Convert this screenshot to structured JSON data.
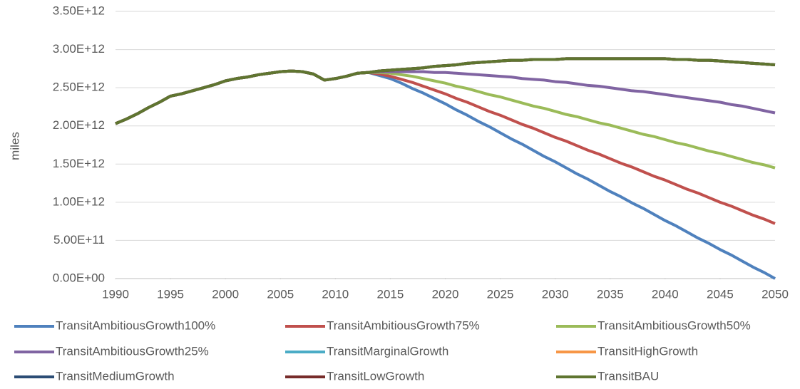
{
  "chart_data": {
    "type": "line",
    "y_label": "miles",
    "x": [
      1990,
      1991,
      1992,
      1993,
      1994,
      1995,
      1996,
      1997,
      1998,
      1999,
      2000,
      2001,
      2002,
      2003,
      2004,
      2005,
      2006,
      2007,
      2008,
      2009,
      2010,
      2011,
      2012,
      2013,
      2014,
      2015,
      2016,
      2017,
      2018,
      2019,
      2020,
      2021,
      2022,
      2023,
      2024,
      2025,
      2026,
      2027,
      2028,
      2029,
      2030,
      2031,
      2032,
      2033,
      2034,
      2035,
      2036,
      2037,
      2038,
      2039,
      2040,
      2041,
      2042,
      2043,
      2044,
      2045,
      2046,
      2047,
      2048,
      2049,
      2050
    ],
    "xlim": [
      1990,
      2050
    ],
    "xticks": [
      1990,
      1995,
      2000,
      2005,
      2010,
      2015,
      2020,
      2025,
      2030,
      2035,
      2040,
      2045,
      2050
    ],
    "ylim": [
      0,
      3500000000000.0
    ],
    "yticks": [
      {
        "value": 0,
        "label": "0.00E+00"
      },
      {
        "value": 500000000000.0,
        "label": "5.00E+11"
      },
      {
        "value": 1000000000000.0,
        "label": "1.00E+12"
      },
      {
        "value": 1500000000000.0,
        "label": "1.50E+12"
      },
      {
        "value": 2000000000000.0,
        "label": "2.00E+12"
      },
      {
        "value": 2500000000000.0,
        "label": "2.50E+12"
      },
      {
        "value": 3000000000000.0,
        "label": "3.00E+12"
      },
      {
        "value": 3500000000000.0,
        "label": "3.50E+12"
      }
    ],
    "grid": true,
    "legend": "bottom",
    "series": [
      {
        "name": "TransitAmbitiousGrowth100%",
        "color": "#4F81BD",
        "values": [
          2030000000000.0,
          2090000000000.0,
          2160000000000.0,
          2240000000000.0,
          2310000000000.0,
          2390000000000.0,
          2420000000000.0,
          2460000000000.0,
          2500000000000.0,
          2540000000000.0,
          2590000000000.0,
          2620000000000.0,
          2640000000000.0,
          2670000000000.0,
          2690000000000.0,
          2710000000000.0,
          2720000000000.0,
          2710000000000.0,
          2680000000000.0,
          2600000000000.0,
          2620000000000.0,
          2650000000000.0,
          2690000000000.0,
          2700000000000.0,
          2660000000000.0,
          2620000000000.0,
          2560000000000.0,
          2490000000000.0,
          2430000000000.0,
          2360000000000.0,
          2290000000000.0,
          2210000000000.0,
          2140000000000.0,
          2060000000000.0,
          1990000000000.0,
          1910000000000.0,
          1830000000000.0,
          1760000000000.0,
          1680000000000.0,
          1600000000000.0,
          1530000000000.0,
          1450000000000.0,
          1370000000000.0,
          1300000000000.0,
          1220000000000.0,
          1140000000000.0,
          1070000000000.0,
          990000000000.0,
          920000000000.0,
          840000000000.0,
          760000000000.0,
          690000000000.0,
          610000000000.0,
          530000000000.0,
          460000000000.0,
          380000000000.0,
          310000000000.0,
          230000000000.0,
          150000000000.0,
          80000000000.0,
          0
        ]
      },
      {
        "name": "TransitAmbitiousGrowth75%",
        "color": "#C0504D",
        "values": [
          2030000000000.0,
          2090000000000.0,
          2160000000000.0,
          2240000000000.0,
          2310000000000.0,
          2390000000000.0,
          2420000000000.0,
          2460000000000.0,
          2500000000000.0,
          2540000000000.0,
          2590000000000.0,
          2620000000000.0,
          2640000000000.0,
          2670000000000.0,
          2690000000000.0,
          2710000000000.0,
          2720000000000.0,
          2710000000000.0,
          2680000000000.0,
          2600000000000.0,
          2620000000000.0,
          2650000000000.0,
          2690000000000.0,
          2700000000000.0,
          2680000000000.0,
          2650000000000.0,
          2610000000000.0,
          2570000000000.0,
          2520000000000.0,
          2470000000000.0,
          2420000000000.0,
          2360000000000.0,
          2310000000000.0,
          2250000000000.0,
          2190000000000.0,
          2140000000000.0,
          2080000000000.0,
          2020000000000.0,
          1970000000000.0,
          1910000000000.0,
          1850000000000.0,
          1800000000000.0,
          1740000000000.0,
          1680000000000.0,
          1630000000000.0,
          1570000000000.0,
          1510000000000.0,
          1460000000000.0,
          1400000000000.0,
          1340000000000.0,
          1290000000000.0,
          1230000000000.0,
          1170000000000.0,
          1120000000000.0,
          1060000000000.0,
          1000000000000.0,
          950000000000.0,
          890000000000.0,
          830000000000.0,
          780000000000.0,
          720000000000.0
        ]
      },
      {
        "name": "TransitAmbitiousGrowth50%",
        "color": "#9BBB59",
        "values": [
          2030000000000.0,
          2090000000000.0,
          2160000000000.0,
          2240000000000.0,
          2310000000000.0,
          2390000000000.0,
          2420000000000.0,
          2460000000000.0,
          2500000000000.0,
          2540000000000.0,
          2590000000000.0,
          2620000000000.0,
          2640000000000.0,
          2670000000000.0,
          2690000000000.0,
          2710000000000.0,
          2720000000000.0,
          2710000000000.0,
          2680000000000.0,
          2600000000000.0,
          2620000000000.0,
          2650000000000.0,
          2690000000000.0,
          2700000000000.0,
          2700000000000.0,
          2690000000000.0,
          2670000000000.0,
          2650000000000.0,
          2620000000000.0,
          2590000000000.0,
          2560000000000.0,
          2520000000000.0,
          2490000000000.0,
          2450000000000.0,
          2410000000000.0,
          2380000000000.0,
          2340000000000.0,
          2300000000000.0,
          2260000000000.0,
          2230000000000.0,
          2190000000000.0,
          2150000000000.0,
          2120000000000.0,
          2080000000000.0,
          2040000000000.0,
          2010000000000.0,
          1970000000000.0,
          1930000000000.0,
          1890000000000.0,
          1860000000000.0,
          1820000000000.0,
          1780000000000.0,
          1750000000000.0,
          1710000000000.0,
          1670000000000.0,
          1640000000000.0,
          1600000000000.0,
          1560000000000.0,
          1520000000000.0,
          1490000000000.0,
          1450000000000.0
        ]
      },
      {
        "name": "TransitAmbitiousGrowth25%",
        "color": "#8064A2",
        "values": [
          2030000000000.0,
          2090000000000.0,
          2160000000000.0,
          2240000000000.0,
          2310000000000.0,
          2390000000000.0,
          2420000000000.0,
          2460000000000.0,
          2500000000000.0,
          2540000000000.0,
          2590000000000.0,
          2620000000000.0,
          2640000000000.0,
          2670000000000.0,
          2690000000000.0,
          2710000000000.0,
          2720000000000.0,
          2710000000000.0,
          2680000000000.0,
          2600000000000.0,
          2620000000000.0,
          2650000000000.0,
          2690000000000.0,
          2700000000000.0,
          2710000000000.0,
          2710000000000.0,
          2710000000000.0,
          2710000000000.0,
          2710000000000.0,
          2700000000000.0,
          2700000000000.0,
          2690000000000.0,
          2680000000000.0,
          2670000000000.0,
          2660000000000.0,
          2650000000000.0,
          2640000000000.0,
          2620000000000.0,
          2610000000000.0,
          2600000000000.0,
          2580000000000.0,
          2570000000000.0,
          2550000000000.0,
          2530000000000.0,
          2520000000000.0,
          2500000000000.0,
          2480000000000.0,
          2460000000000.0,
          2450000000000.0,
          2430000000000.0,
          2410000000000.0,
          2390000000000.0,
          2370000000000.0,
          2350000000000.0,
          2330000000000.0,
          2310000000000.0,
          2280000000000.0,
          2260000000000.0,
          2230000000000.0,
          2200000000000.0,
          2170000000000.0
        ]
      },
      {
        "name": "TransitMarginalGrowth",
        "color": "#4BACC6",
        "values": [
          2030000000000.0,
          2090000000000.0,
          2160000000000.0,
          2240000000000.0,
          2310000000000.0,
          2390000000000.0,
          2420000000000.0,
          2460000000000.0,
          2500000000000.0,
          2540000000000.0,
          2590000000000.0,
          2620000000000.0,
          2640000000000.0,
          2670000000000.0,
          2690000000000.0,
          2710000000000.0,
          2720000000000.0,
          2710000000000.0,
          2680000000000.0,
          2600000000000.0,
          2620000000000.0,
          2650000000000.0,
          2690000000000.0,
          2700000000000.0,
          2720000000000.0,
          2730000000000.0,
          2740000000000.0,
          2750000000000.0,
          2760000000000.0,
          2780000000000.0,
          2790000000000.0,
          2800000000000.0,
          2820000000000.0,
          2830000000000.0,
          2840000000000.0,
          2850000000000.0,
          2860000000000.0,
          2860000000000.0,
          2870000000000.0,
          2870000000000.0,
          2870000000000.0,
          2880000000000.0,
          2880000000000.0,
          2880000000000.0,
          2880000000000.0,
          2880000000000.0,
          2880000000000.0,
          2880000000000.0,
          2880000000000.0,
          2880000000000.0,
          2880000000000.0,
          2870000000000.0,
          2870000000000.0,
          2860000000000.0,
          2860000000000.0,
          2850000000000.0,
          2840000000000.0,
          2830000000000.0,
          2820000000000.0,
          2810000000000.0,
          2800000000000.0
        ]
      },
      {
        "name": "TransitHighGrowth",
        "color": "#F79646",
        "values": [
          2030000000000.0,
          2090000000000.0,
          2160000000000.0,
          2240000000000.0,
          2310000000000.0,
          2390000000000.0,
          2420000000000.0,
          2460000000000.0,
          2500000000000.0,
          2540000000000.0,
          2590000000000.0,
          2620000000000.0,
          2640000000000.0,
          2670000000000.0,
          2690000000000.0,
          2710000000000.0,
          2720000000000.0,
          2710000000000.0,
          2680000000000.0,
          2600000000000.0,
          2620000000000.0,
          2650000000000.0,
          2690000000000.0,
          2700000000000.0,
          2720000000000.0,
          2730000000000.0,
          2740000000000.0,
          2750000000000.0,
          2760000000000.0,
          2780000000000.0,
          2790000000000.0,
          2800000000000.0,
          2820000000000.0,
          2830000000000.0,
          2840000000000.0,
          2850000000000.0,
          2860000000000.0,
          2860000000000.0,
          2870000000000.0,
          2870000000000.0,
          2870000000000.0,
          2880000000000.0,
          2880000000000.0,
          2880000000000.0,
          2880000000000.0,
          2880000000000.0,
          2880000000000.0,
          2880000000000.0,
          2880000000000.0,
          2880000000000.0,
          2880000000000.0,
          2870000000000.0,
          2870000000000.0,
          2860000000000.0,
          2860000000000.0,
          2850000000000.0,
          2840000000000.0,
          2830000000000.0,
          2820000000000.0,
          2810000000000.0,
          2800000000000.0
        ]
      },
      {
        "name": "TransitMediumGrowth",
        "color": "#2C4D75",
        "values": [
          2030000000000.0,
          2090000000000.0,
          2160000000000.0,
          2240000000000.0,
          2310000000000.0,
          2390000000000.0,
          2420000000000.0,
          2460000000000.0,
          2500000000000.0,
          2540000000000.0,
          2590000000000.0,
          2620000000000.0,
          2640000000000.0,
          2670000000000.0,
          2690000000000.0,
          2710000000000.0,
          2720000000000.0,
          2710000000000.0,
          2680000000000.0,
          2600000000000.0,
          2620000000000.0,
          2650000000000.0,
          2690000000000.0,
          2700000000000.0,
          2720000000000.0,
          2730000000000.0,
          2740000000000.0,
          2750000000000.0,
          2760000000000.0,
          2780000000000.0,
          2790000000000.0,
          2800000000000.0,
          2820000000000.0,
          2830000000000.0,
          2840000000000.0,
          2850000000000.0,
          2860000000000.0,
          2860000000000.0,
          2870000000000.0,
          2870000000000.0,
          2870000000000.0,
          2880000000000.0,
          2880000000000.0,
          2880000000000.0,
          2880000000000.0,
          2880000000000.0,
          2880000000000.0,
          2880000000000.0,
          2880000000000.0,
          2880000000000.0,
          2880000000000.0,
          2870000000000.0,
          2870000000000.0,
          2860000000000.0,
          2860000000000.0,
          2850000000000.0,
          2840000000000.0,
          2830000000000.0,
          2820000000000.0,
          2810000000000.0,
          2800000000000.0
        ]
      },
      {
        "name": "TransitLowGrowth",
        "color": "#772C2A",
        "values": [
          2030000000000.0,
          2090000000000.0,
          2160000000000.0,
          2240000000000.0,
          2310000000000.0,
          2390000000000.0,
          2420000000000.0,
          2460000000000.0,
          2500000000000.0,
          2540000000000.0,
          2590000000000.0,
          2620000000000.0,
          2640000000000.0,
          2670000000000.0,
          2690000000000.0,
          2710000000000.0,
          2720000000000.0,
          2710000000000.0,
          2680000000000.0,
          2600000000000.0,
          2620000000000.0,
          2650000000000.0,
          2690000000000.0,
          2700000000000.0,
          2720000000000.0,
          2730000000000.0,
          2740000000000.0,
          2750000000000.0,
          2760000000000.0,
          2780000000000.0,
          2790000000000.0,
          2800000000000.0,
          2820000000000.0,
          2830000000000.0,
          2840000000000.0,
          2850000000000.0,
          2860000000000.0,
          2860000000000.0,
          2870000000000.0,
          2870000000000.0,
          2870000000000.0,
          2880000000000.0,
          2880000000000.0,
          2880000000000.0,
          2880000000000.0,
          2880000000000.0,
          2880000000000.0,
          2880000000000.0,
          2880000000000.0,
          2880000000000.0,
          2880000000000.0,
          2870000000000.0,
          2870000000000.0,
          2860000000000.0,
          2860000000000.0,
          2850000000000.0,
          2840000000000.0,
          2830000000000.0,
          2820000000000.0,
          2810000000000.0,
          2800000000000.0
        ]
      },
      {
        "name": "TransitBAU",
        "color": "#5F7530",
        "values": [
          2030000000000.0,
          2090000000000.0,
          2160000000000.0,
          2240000000000.0,
          2310000000000.0,
          2390000000000.0,
          2420000000000.0,
          2460000000000.0,
          2500000000000.0,
          2540000000000.0,
          2590000000000.0,
          2620000000000.0,
          2640000000000.0,
          2670000000000.0,
          2690000000000.0,
          2710000000000.0,
          2720000000000.0,
          2710000000000.0,
          2680000000000.0,
          2600000000000.0,
          2620000000000.0,
          2650000000000.0,
          2690000000000.0,
          2700000000000.0,
          2720000000000.0,
          2730000000000.0,
          2740000000000.0,
          2750000000000.0,
          2760000000000.0,
          2780000000000.0,
          2790000000000.0,
          2800000000000.0,
          2820000000000.0,
          2830000000000.0,
          2840000000000.0,
          2850000000000.0,
          2860000000000.0,
          2860000000000.0,
          2870000000000.0,
          2870000000000.0,
          2870000000000.0,
          2880000000000.0,
          2880000000000.0,
          2880000000000.0,
          2880000000000.0,
          2880000000000.0,
          2880000000000.0,
          2880000000000.0,
          2880000000000.0,
          2880000000000.0,
          2880000000000.0,
          2870000000000.0,
          2870000000000.0,
          2860000000000.0,
          2860000000000.0,
          2850000000000.0,
          2840000000000.0,
          2830000000000.0,
          2820000000000.0,
          2810000000000.0,
          2800000000000.0
        ]
      }
    ]
  }
}
